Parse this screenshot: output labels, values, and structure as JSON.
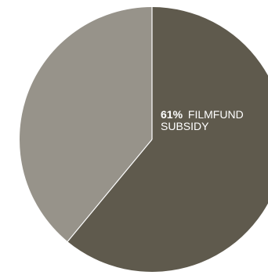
{
  "chart_data": {
    "type": "pie",
    "start_angle_deg": 0,
    "direction": "clockwise",
    "slices": [
      {
        "label_pct": "61%",
        "label_line1": "FILMFUND",
        "label_line2": "SUBSIDY",
        "value": 61,
        "color": "#5f5a4d"
      },
      {
        "value": 39,
        "color": "#97938a"
      }
    ],
    "separator_color": "#ffffff"
  }
}
